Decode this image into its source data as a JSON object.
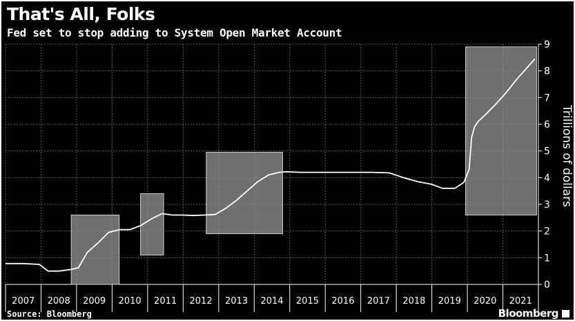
{
  "title": "That's All, Folks",
  "subtitle": "Fed set to stop adding to System Open Market Account",
  "source": "Source: Bloomberg",
  "brand": "Bloomberg",
  "colors": {
    "background": "#000000",
    "line": "#ffffff",
    "shade": "#9a9a9a",
    "grid": "#5a5a5a"
  },
  "chart_data": {
    "type": "line",
    "title": "That's All, Folks",
    "subtitle": "Fed set to stop adding to System Open Market Account",
    "xlabel": "",
    "ylabel": "Trillions of dollars",
    "xlim": [
      2007.0,
      2022.0
    ],
    "ylim": [
      0,
      9
    ],
    "x_ticks": [
      "2007",
      "2008",
      "2009",
      "2010",
      "2011",
      "2012",
      "2013",
      "2014",
      "2015",
      "2016",
      "2017",
      "2018",
      "2019",
      "2020",
      "2021"
    ],
    "y_ticks": [
      0,
      1,
      2,
      3,
      4,
      5,
      6,
      7,
      8,
      9
    ],
    "grid": true,
    "y_axis_side": "right",
    "series": [
      {
        "x": [
          2007.0,
          2007.5,
          2007.95,
          2008.2,
          2008.5,
          2008.8,
          2009.05,
          2009.3,
          2009.6,
          2009.9,
          2010.2,
          2010.5,
          2010.8,
          2011.1,
          2011.4,
          2011.7,
          2012.0,
          2012.3,
          2012.6,
          2012.9,
          2013.2,
          2013.5,
          2013.8,
          2014.1,
          2014.4,
          2014.7,
          2014.9,
          2015.3,
          2015.8,
          2016.3,
          2016.8,
          2017.3,
          2017.8,
          2018.2,
          2018.6,
          2019.0,
          2019.3,
          2019.65,
          2019.9,
          2020.05,
          2020.12,
          2020.2,
          2020.3,
          2020.5,
          2020.8,
          2021.1,
          2021.4,
          2021.7,
          2021.9
        ],
        "values": [
          0.78,
          0.78,
          0.75,
          0.5,
          0.5,
          0.55,
          0.62,
          1.2,
          1.55,
          1.95,
          2.05,
          2.05,
          2.2,
          2.45,
          2.65,
          2.6,
          2.6,
          2.58,
          2.6,
          2.62,
          2.85,
          3.15,
          3.5,
          3.85,
          4.1,
          4.2,
          4.22,
          4.2,
          4.2,
          4.2,
          4.2,
          4.2,
          4.18,
          4.0,
          3.85,
          3.75,
          3.6,
          3.6,
          3.82,
          4.3,
          5.5,
          5.9,
          6.1,
          6.35,
          6.75,
          7.2,
          7.7,
          8.15,
          8.45
        ]
      }
    ],
    "highlight_boxes": [
      {
        "x": [
          2008.85,
          2010.2
        ],
        "y": [
          0.0,
          2.6
        ]
      },
      {
        "x": [
          2010.8,
          2011.45
        ],
        "y": [
          1.1,
          3.4
        ]
      },
      {
        "x": [
          2012.65,
          2014.8
        ],
        "y": [
          1.9,
          4.95
        ]
      },
      {
        "x": [
          2019.95,
          2021.95
        ],
        "y": [
          2.6,
          8.9
        ]
      }
    ]
  }
}
